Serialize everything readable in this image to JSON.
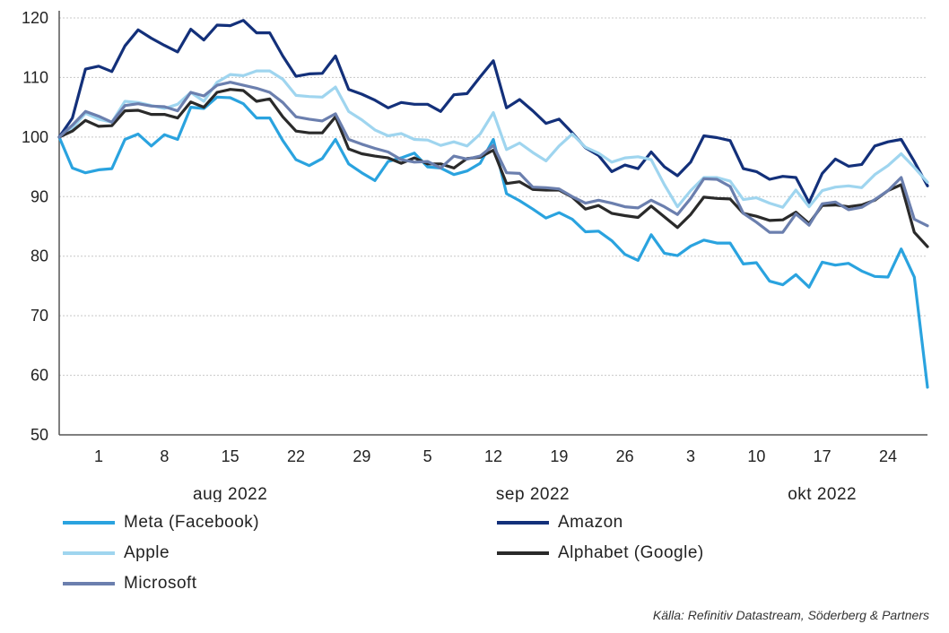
{
  "chart_data": {
    "type": "line",
    "title": "",
    "xlabel": "",
    "ylabel": "",
    "ylim": [
      50,
      120
    ],
    "yticks": [
      50,
      60,
      70,
      80,
      90,
      100,
      110,
      120
    ],
    "grid": true,
    "x_tick_labels": [
      {
        "label": "1",
        "index": 3
      },
      {
        "label": "8",
        "index": 8
      },
      {
        "label": "15",
        "index": 13
      },
      {
        "label": "22",
        "index": 18
      },
      {
        "label": "29",
        "index": 23
      },
      {
        "label": "5",
        "index": 28
      },
      {
        "label": "12",
        "index": 33
      },
      {
        "label": "19",
        "index": 38
      },
      {
        "label": "26",
        "index": 43
      },
      {
        "label": "3",
        "index": 48
      },
      {
        "label": "10",
        "index": 53
      },
      {
        "label": "17",
        "index": 58
      },
      {
        "label": "24",
        "index": 63
      }
    ],
    "month_labels": [
      {
        "label": "aug 2022",
        "index": 13
      },
      {
        "label": "sep 2022",
        "index": 36
      },
      {
        "label": "okt 2022",
        "index": 58
      }
    ],
    "series": [
      {
        "name": "Meta (Facebook)",
        "color": "#2aa3df",
        "values": [
          100,
          94.8,
          94,
          94.5,
          94.7,
          99.6,
          100.5,
          98.5,
          100.4,
          99.6,
          105,
          104.8,
          106.7,
          106.6,
          105.6,
          103.2,
          103.2,
          99.4,
          96.2,
          95.2,
          96.4,
          99.6,
          95.5,
          94,
          92.7,
          95.9,
          96.5,
          97.3,
          95,
          94.8,
          93.7,
          94.3,
          95.6,
          99.6,
          90.5,
          89.3,
          87.9,
          86.4,
          87.3,
          86.2,
          84.1,
          84.2,
          82.6,
          80.3,
          79.3,
          83.6,
          80.5,
          80.1,
          81.7,
          82.7,
          82.2,
          82.2,
          78.7,
          78.9,
          75.8,
          75.2,
          76.9,
          74.8,
          79,
          78.5,
          78.8,
          77.5,
          76.6,
          76.5,
          81.2,
          76.5,
          58
        ]
      },
      {
        "name": "Amazon",
        "color": "#13307a",
        "values": [
          100,
          103.2,
          111.4,
          111.9,
          111,
          115.3,
          118,
          116.6,
          115.4,
          114.3,
          118.1,
          116.3,
          118.8,
          118.7,
          119.6,
          117.5,
          117.5,
          113.6,
          110.2,
          110.6,
          110.7,
          113.6,
          108,
          107.2,
          106.2,
          104.9,
          105.8,
          105.5,
          105.5,
          104.3,
          107.1,
          107.3,
          110.1,
          112.8,
          104.9,
          106.3,
          104.4,
          102.3,
          103,
          100.7,
          98.2,
          96.9,
          94.2,
          95.3,
          94.7,
          97.5,
          95,
          93.5,
          95.8,
          100.2,
          99.9,
          99.4,
          94.7,
          94.2,
          92.9,
          93.4,
          93.2,
          89,
          93.9,
          96.3,
          95.1,
          95.4,
          98.5,
          99.2,
          99.6,
          95.9,
          91.8
        ]
      },
      {
        "name": "Apple",
        "color": "#9fd5ef",
        "values": [
          100,
          101.5,
          104,
          103,
          102.5,
          106,
          105.8,
          105.3,
          104.8,
          105.5,
          107.5,
          106,
          109.2,
          110.5,
          110.3,
          111.1,
          111.1,
          109.7,
          107,
          106.8,
          106.7,
          108.4,
          104.3,
          102.9,
          101.2,
          100.2,
          100.6,
          99.6,
          99.5,
          98.6,
          99.2,
          98.5,
          100.5,
          104.1,
          97.9,
          99,
          97.4,
          96,
          98.5,
          100.5,
          98.3,
          97.3,
          95.8,
          96.5,
          96.7,
          96.2,
          92,
          88.3,
          91,
          93.2,
          93.2,
          92.6,
          89.5,
          89.8,
          88.9,
          88.2,
          91.1,
          88.3,
          91,
          91.6,
          91.8,
          91.5,
          93.7,
          95.2,
          97.2,
          94.9,
          92.4
        ]
      },
      {
        "name": "Alphabet (Google)",
        "color": "#2a2a2a",
        "values": [
          100,
          101,
          102.8,
          101.8,
          101.9,
          104.4,
          104.5,
          103.8,
          103.8,
          103.2,
          105.9,
          105,
          107.5,
          108,
          107.8,
          106,
          106.4,
          103.4,
          101,
          100.7,
          100.7,
          103.4,
          98,
          97.2,
          96.8,
          96.5,
          95.6,
          96.5,
          95.5,
          95.5,
          94.8,
          96.4,
          96.6,
          97.8,
          92.2,
          92.5,
          91.2,
          91.1,
          91.1,
          89.9,
          87.9,
          88.5,
          87.2,
          86.8,
          86.5,
          88.4,
          86.6,
          84.8,
          87,
          89.9,
          89.7,
          89.6,
          87.2,
          86.7,
          86,
          86.1,
          87.4,
          85.5,
          88.5,
          88.6,
          88.3,
          88.6,
          89.4,
          91,
          92,
          84,
          81.6
        ]
      },
      {
        "name": "Microsoft",
        "color": "#6b7fae",
        "values": [
          100,
          102,
          104.3,
          103.5,
          102.5,
          105.3,
          105.6,
          105.2,
          105.1,
          104.4,
          107.5,
          106.9,
          108.7,
          109.2,
          108.7,
          108.2,
          107.5,
          105.8,
          103.4,
          103,
          102.7,
          103.9,
          99.6,
          98.8,
          98.1,
          97.5,
          96.2,
          95.8,
          95.9,
          94.8,
          96.8,
          96.3,
          96.8,
          98.6,
          94,
          93.9,
          91.6,
          91.5,
          91.3,
          90,
          88.9,
          89.4,
          88.9,
          88.3,
          88.1,
          89.4,
          88.3,
          87,
          89.7,
          93,
          92.9,
          91.7,
          87.2,
          85.7,
          84,
          84,
          87.1,
          85.2,
          88.8,
          89.1,
          87.8,
          88.2,
          89.5,
          91,
          93.2,
          86.2,
          85.1
        ]
      }
    ]
  },
  "legend": {
    "items": [
      {
        "label": "Meta (Facebook)",
        "color": "#2aa3df"
      },
      {
        "label": "Amazon",
        "color": "#13307a"
      },
      {
        "label": "Apple",
        "color": "#9fd5ef"
      },
      {
        "label": "Alphabet (Google)",
        "color": "#2a2a2a"
      },
      {
        "label": "Microsoft",
        "color": "#6b7fae"
      }
    ]
  },
  "source_text": "Källa: Refinitiv Datastream, Söderberg & Partners"
}
